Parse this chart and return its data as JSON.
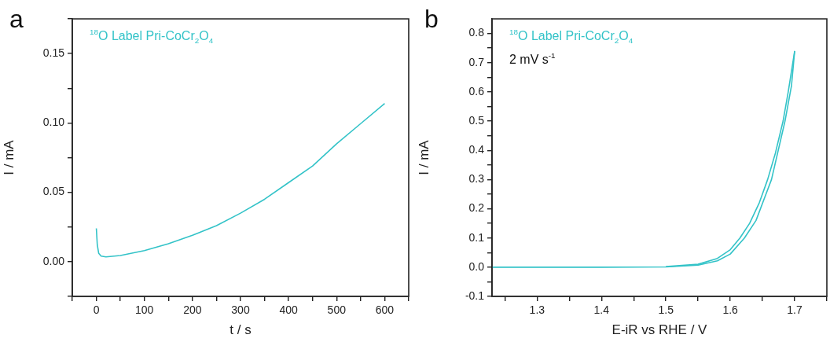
{
  "chart_data": [
    {
      "type": "line",
      "title": "a",
      "xlabel": "t / s",
      "ylabel": "I / mA",
      "annotations": [
        "$^{18}$O Label Pri-CoCr$_{2}$O$_{4}$"
      ],
      "marker": "none",
      "line_style": "solid",
      "grid": false,
      "xlim": [
        -50,
        650
      ],
      "xticks": [
        {
          "value": -50,
          "label": null
        },
        0,
        {
          "value": 50,
          "label": null
        },
        100,
        {
          "value": 150,
          "label": null
        },
        200,
        {
          "value": 250,
          "label": null
        },
        300,
        {
          "value": 350,
          "label": null
        },
        400,
        {
          "value": 450,
          "label": null
        },
        500,
        {
          "value": 550,
          "label": null
        },
        600,
        {
          "value": 650,
          "label": null
        }
      ],
      "ylim": [
        -0.025,
        0.175
      ],
      "yticks": [
        {
          "value": -0.025,
          "label": null
        },
        {
          "value": 0,
          "label": "0.00"
        },
        {
          "value": 0.025,
          "label": null
        },
        {
          "value": 0.05,
          "label": "0.05"
        },
        {
          "value": 0.075,
          "label": null
        },
        {
          "value": 0.1,
          "label": "0.10"
        },
        {
          "value": 0.125,
          "label": null
        },
        {
          "value": 0.15,
          "label": "0.15"
        },
        {
          "value": 0.175,
          "label": null
        }
      ],
      "series": [
        {
          "color": "#33c3c8",
          "x": [
            0,
            2,
            5,
            10,
            20,
            50,
            100,
            150,
            200,
            250,
            300,
            350,
            400,
            450,
            500,
            550,
            600
          ],
          "values": [
            0.024,
            0.012,
            0.006,
            0.004,
            0.0035,
            0.0045,
            0.008,
            0.013,
            0.019,
            0.026,
            0.035,
            0.045,
            0.057,
            0.069,
            0.085,
            0.0995,
            0.114
          ]
        }
      ]
    },
    {
      "type": "line",
      "title": "b",
      "xlabel": "E-iR vs RHE / V",
      "ylabel": "I / mA",
      "annotations": [
        "$^{18}$O Label Pri-CoCr$_{2}$O$_{4}$",
        "2 mV s$^{-1}$"
      ],
      "marker": "none",
      "line_style": "solid",
      "grid": false,
      "xlim": [
        1.23,
        1.75
      ],
      "xticks": [
        {
          "value": 1.25,
          "label": null
        },
        1.3,
        {
          "value": 1.35,
          "label": null
        },
        1.4,
        {
          "value": 1.45,
          "label": null
        },
        1.5,
        {
          "value": 1.55,
          "label": null
        },
        1.6,
        {
          "value": 1.65,
          "label": null
        },
        1.7,
        {
          "value": 1.75,
          "label": null
        }
      ],
      "ylim": [
        -0.1,
        0.85
      ],
      "yticks": [
        {
          "value": -0.1,
          "label": "-0.1"
        },
        {
          "value": -0.05,
          "label": null
        },
        {
          "value": 0,
          "label": "0.0"
        },
        {
          "value": 0.05,
          "label": null
        },
        {
          "value": 0.1,
          "label": "0.1"
        },
        {
          "value": 0.15,
          "label": null
        },
        {
          "value": 0.2,
          "label": "0.2"
        },
        {
          "value": 0.25,
          "label": null
        },
        {
          "value": 0.3,
          "label": "0.3"
        },
        {
          "value": 0.35,
          "label": null
        },
        {
          "value": 0.4,
          "label": "0.4"
        },
        {
          "value": 0.45,
          "label": null
        },
        {
          "value": 0.5,
          "label": "0.5"
        },
        {
          "value": 0.55,
          "label": null
        },
        {
          "value": 0.6,
          "label": "0.6"
        },
        {
          "value": 0.65,
          "label": null
        },
        {
          "value": 0.7,
          "label": "0.7"
        },
        {
          "value": 0.75,
          "label": null
        },
        {
          "value": 0.8,
          "label": "0.8"
        }
      ],
      "series": [
        {
          "color": "#33c3c8",
          "x": [
            1.23,
            1.3,
            1.4,
            1.5,
            1.55,
            1.58,
            1.6,
            1.622,
            1.64,
            1.664,
            1.685,
            1.695,
            1.7
          ],
          "values": [
            0,
            0,
            0,
            0.001,
            0.007,
            0.022,
            0.045,
            0.1,
            0.16,
            0.3,
            0.5,
            0.62,
            0.74
          ]
        },
        {
          "color": "#33c3c8",
          "x": [
            1.5,
            1.55,
            1.58,
            1.6,
            1.615,
            1.63,
            1.645,
            1.658,
            1.67,
            1.682,
            1.69,
            1.7
          ],
          "values": [
            0.002,
            0.01,
            0.03,
            0.06,
            0.1,
            0.15,
            0.22,
            0.3,
            0.39,
            0.5,
            0.6,
            0.74
          ]
        }
      ]
    }
  ]
}
